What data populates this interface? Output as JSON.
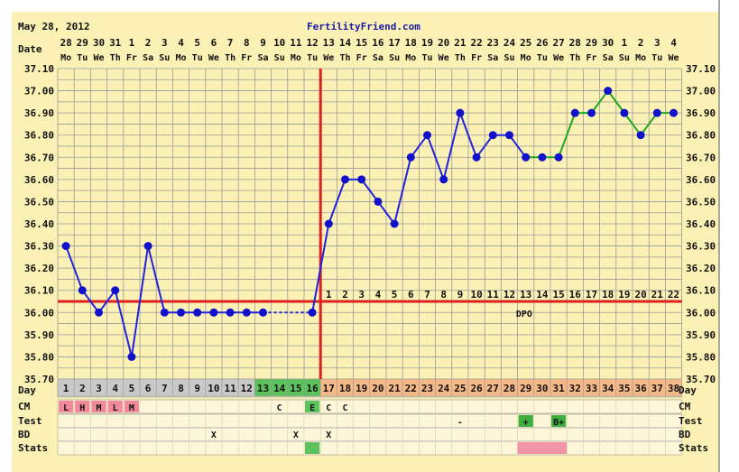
{
  "header": {
    "date": "May 28, 2012",
    "site": "FertilityFriend.com"
  },
  "colors": {
    "background": "#ffffff",
    "panel": "#fbf1b4",
    "grid": "#9a9a9a",
    "line_pre": "#2222dd",
    "line_post_ovulation": "#1fa81f",
    "marker": "#1111cc",
    "coverline": "#dd2020",
    "cycle_gray": "#c9c9c9",
    "cycle_green": "#5cc25c",
    "cycle_orange": "#f5b987",
    "cm_pink": "#f08a9a",
    "test_green": "#3fae3f",
    "stats_pink": "#f294a8"
  },
  "chart_data": {
    "type": "line",
    "title": "",
    "ylabel": "",
    "xlabel": "",
    "ylim": [
      35.7,
      37.1
    ],
    "yticks": [
      "37.10",
      "37.00",
      "36.90",
      "36.80",
      "36.70",
      "36.60",
      "36.50",
      "36.40",
      "36.30",
      "36.20",
      "36.10",
      "36.00",
      "35.90",
      "35.80",
      "35.70"
    ],
    "grid": true,
    "dates": [
      "28",
      "29",
      "30",
      "31",
      "1",
      "2",
      "3",
      "4",
      "5",
      "6",
      "7",
      "8",
      "9",
      "10",
      "11",
      "12",
      "13",
      "14",
      "15",
      "16",
      "17",
      "18",
      "19",
      "20",
      "21",
      "22",
      "23",
      "24",
      "25",
      "26",
      "27",
      "28",
      "29",
      "30",
      "1",
      "2",
      "3",
      "4"
    ],
    "weekdays": [
      "Mo",
      "Tu",
      "We",
      "Th",
      "Fr",
      "Sa",
      "Su",
      "Mo",
      "Tu",
      "We",
      "Th",
      "Fr",
      "Sa",
      "Su",
      "Mo",
      "Tu",
      "We",
      "Th",
      "Fr",
      "Sa",
      "Su",
      "Mo",
      "Tu",
      "We",
      "Th",
      "Fr",
      "Sa",
      "Su",
      "Mo",
      "Tu",
      "We",
      "Th",
      "Fr",
      "Sa",
      "Su",
      "Mo",
      "Tu",
      "We"
    ],
    "cycle_days": [
      "1",
      "2",
      "3",
      "4",
      "5",
      "6",
      "7",
      "8",
      "9",
      "10",
      "11",
      "12",
      "13",
      "14",
      "15",
      "16",
      "17",
      "18",
      "19",
      "20",
      "21",
      "22",
      "23",
      "24",
      "25",
      "26",
      "27",
      "28",
      "29",
      "30",
      "31",
      "32",
      "33",
      "34",
      "35",
      "36",
      "37",
      "38"
    ],
    "temps": [
      36.3,
      36.1,
      36.0,
      36.1,
      35.8,
      36.3,
      36.0,
      36.0,
      36.0,
      36.0,
      36.0,
      36.0,
      36.0,
      null,
      null,
      36.0,
      36.4,
      36.6,
      36.6,
      36.5,
      36.4,
      36.7,
      36.8,
      36.6,
      36.9,
      36.7,
      36.8,
      36.8,
      36.7,
      36.7,
      36.7,
      36.9,
      36.9,
      37.0,
      36.9,
      36.8,
      36.9,
      36.9
    ],
    "coverline": 36.05,
    "ovulation_day": 16,
    "dpo": [
      "1",
      "2",
      "3",
      "4",
      "5",
      "6",
      "7",
      "8",
      "9",
      "10",
      "11",
      "12",
      "13",
      "14",
      "15",
      "16",
      "17",
      "18",
      "19",
      "20",
      "21",
      "22"
    ],
    "dpo_label": "DPO",
    "cm": {
      "1": "L",
      "2": "H",
      "3": "M",
      "4": "L",
      "5": "M",
      "14": "C",
      "16": "E",
      "17": "C",
      "18": "C"
    },
    "test": {
      "25": "-",
      "29": "+",
      "31": "B+"
    },
    "bd": {
      "10": "X",
      "15": "X",
      "17": "X"
    },
    "stats_green_days": [
      16
    ],
    "stats_pink_days": [
      29,
      30,
      31
    ],
    "cm_pink_days": [
      1,
      2,
      3,
      4,
      5
    ],
    "cm_green_days": [
      16
    ],
    "test_green_days": [
      29,
      31
    ],
    "cycle_gray_days": [
      1,
      2,
      3,
      4,
      5,
      6,
      7,
      8,
      9,
      10,
      11,
      12
    ],
    "cycle_green_days": [
      13,
      14,
      15,
      16
    ],
    "cycle_orange_days": [
      17,
      18,
      19,
      20,
      21,
      22,
      23,
      24,
      25,
      26,
      27,
      28,
      29,
      30,
      31,
      32,
      33,
      34,
      35,
      36,
      37,
      38
    ],
    "post_ovulation_green_from": 29
  },
  "labels": {
    "date": "Date",
    "day": "Day",
    "cm": "CM",
    "test": "Test",
    "bd": "BD",
    "stats": "Stats"
  }
}
